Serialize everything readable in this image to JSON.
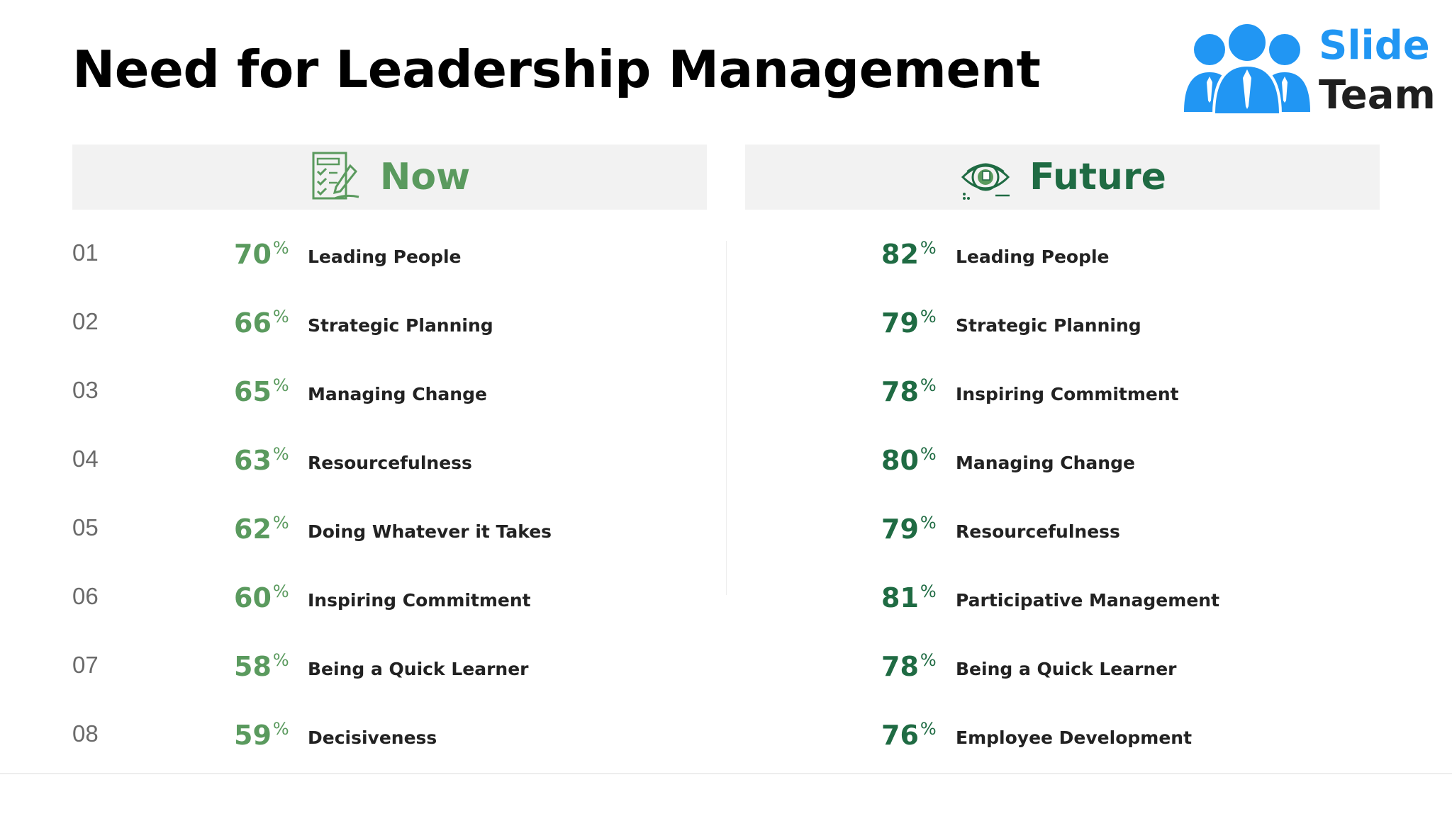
{
  "title": "Need for Leadership Management",
  "logo": {
    "line1": "Slide",
    "line2": "Team",
    "brand_color": "#2196f3"
  },
  "colors": {
    "now": "#5a9a5e",
    "future": "#1f6b43",
    "header_bg": "#f2f2f2"
  },
  "now": {
    "heading": "Now",
    "icon": "checklist-pen-icon",
    "items": [
      {
        "num": "01",
        "value": "70",
        "label": "Leading People"
      },
      {
        "num": "02",
        "value": "66",
        "label": "Strategic Planning"
      },
      {
        "num": "03",
        "value": "65",
        "label": "Managing Change"
      },
      {
        "num": "04",
        "value": "63",
        "label": "Resourcefulness"
      },
      {
        "num": "05",
        "value": "62",
        "label": "Doing Whatever it Takes"
      },
      {
        "num": "06",
        "value": "60",
        "label": "Inspiring Commitment"
      },
      {
        "num": "07",
        "value": "58",
        "label": "Being a Quick Learner"
      },
      {
        "num": "08",
        "value": "59",
        "label": "Decisiveness"
      }
    ]
  },
  "future": {
    "heading": "Future",
    "icon": "eye-vision-icon",
    "items": [
      {
        "value": "82",
        "label": "Leading People"
      },
      {
        "value": "79",
        "label": "Strategic Planning"
      },
      {
        "value": "78",
        "label": "Inspiring Commitment"
      },
      {
        "value": "80",
        "label": "Managing Change"
      },
      {
        "value": "79",
        "label": "Resourcefulness"
      },
      {
        "value": "81",
        "label": "Participative Management"
      },
      {
        "value": "78",
        "label": "Being a Quick Learner"
      },
      {
        "value": "76",
        "label": "Employee Development"
      }
    ]
  },
  "percent_sign": "%"
}
